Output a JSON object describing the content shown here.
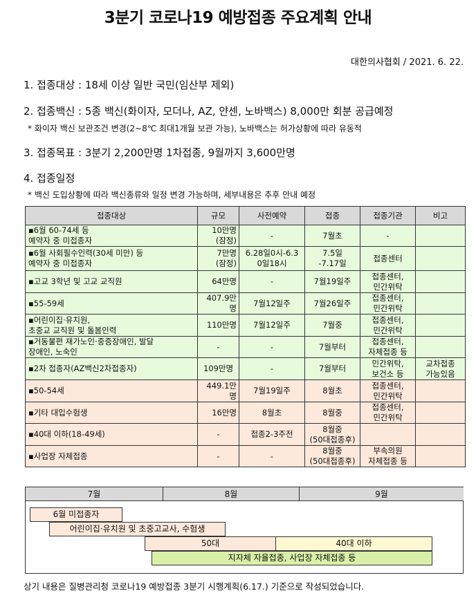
{
  "title": "3분기 코로나19 예방접종 주요계획 안내",
  "byline": "대한의사협회 / 2021. 6. 22.",
  "sections": [
    "1. 접종대상 : 18세 이상 일반 국민(임산부 제외)",
    "2. 접종백신 : 5종 백신(화이자, 모더나, AZ, 얀센, 노바백스) 8,000만 회분 공급예정",
    "3. 접종목표 : 3분기 2,200만명 1차접종, 9월까지 3,600만명",
    "4. 접종일정"
  ],
  "notes": [
    "* 화이자 백신 보관조건 변경(2~8℃ 최대1개월 보관 가능), 노바백스는 허가상황에 따라 유동적",
    "* 백신 도입상황에 따라 백신종류와 일정 변경 가능하며, 세부내용은 추후 안내 예정"
  ],
  "table": {
    "headers": [
      "접종대상",
      "규모",
      "사전예약",
      "접종",
      "접종기관",
      "비고"
    ],
    "colors": {
      "july": "#e7fbdc",
      "august": "#fde8dc",
      "header": "#d9d9d9"
    },
    "rows": [
      {
        "group": "g",
        "cells": [
          "▪6월 60-74세 등\n   예약자 중 미접종자",
          "10만명\n(잠정)",
          "-",
          "7월초",
          "-",
          ""
        ]
      },
      {
        "group": "g",
        "cells": [
          "▪6월 사회필수인력(30세 미만) 등\n   예약자 중 미접종자",
          "7만명\n(잠정)",
          "6.28일0시-6.3\n0일18시",
          "7.5일\n-7.17일",
          "접종센터",
          ""
        ]
      },
      {
        "group": "g",
        "cells": [
          "▪고교 3학년 및 고교 교직원",
          "64만명",
          "-",
          "7월19일주",
          "접종센터,\n민간위탁",
          ""
        ]
      },
      {
        "group": "g",
        "cells": [
          "▪55-59세",
          "407.9만명",
          "7월12일주",
          "7월26일주",
          "접종센터,\n민간위탁",
          ""
        ]
      },
      {
        "group": "g",
        "cells": [
          "▪어린이집·유치원,\n   초중교 교직원 및 돌봄인력",
          "110만명",
          "7월12일주",
          "7월중",
          "접종센터,\n민간위탁",
          ""
        ]
      },
      {
        "group": "g",
        "cells": [
          "▪거동불편  재가노인·중증장애인,  발달\n   장애인, 노숙인",
          "-",
          "-",
          "7월부터",
          "접종센터,\n자체접종 등",
          ""
        ]
      },
      {
        "group": "g",
        "cells": [
          "▪2차 접종자(AZ백신2차접종자)",
          "109만명",
          "-",
          "7월부터",
          "민간위탁,\n보건소 등",
          "교차접종\n가능있음"
        ]
      },
      {
        "group": "p",
        "cells": [
          "▪50-54세",
          "449.1만명",
          "7월19일주",
          "8월초",
          "접종센터,\n민간위탁",
          ""
        ]
      },
      {
        "group": "p",
        "cells": [
          "▪기타 대입수험생",
          "16만명",
          "8월초",
          "8월중",
          "접종센터,\n민간위탁",
          ""
        ]
      },
      {
        "group": "p",
        "cells": [
          "▪40대 이하(18-49세)",
          "-",
          "접종2-3주전",
          "8월중\n(50대접종후)",
          "",
          ""
        ]
      },
      {
        "group": "p",
        "cells": [
          "▪사업장 자체접종",
          "-",
          "-",
          "8월중\n(50대접종후)",
          "부속의원\n자체접종 등",
          ""
        ]
      }
    ]
  },
  "gantt": {
    "months": [
      "7월",
      "8월",
      "9월"
    ],
    "bars": [
      {
        "label": "6월 미접종자",
        "color": "#fde8dc"
      },
      {
        "label": "어린이집·유치원 및 초중고교사, 수험생",
        "color": "#fde8dc"
      },
      {
        "label": "50대",
        "color": "#fde8dc"
      },
      {
        "label": "40대 이하",
        "color": "#fdf7d2"
      },
      {
        "label": "지자체 자율접종, 사업장 자체접종 등",
        "color": "#d9f0a8"
      }
    ]
  },
  "footer": "상기 내용은 질병관리청 코로나19 예방접종 3분기 시행계획(6.17.) 기준으로 작성되었습니다."
}
